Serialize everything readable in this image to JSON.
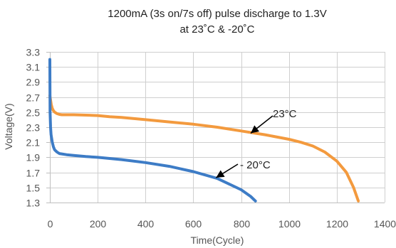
{
  "chart_data": {
    "type": "line",
    "title_lines": [
      "1200mA (3s on/7s off) pulse discharge to 1.3V",
      "at 23˚C & -20˚C"
    ],
    "xlabel": "Time(Cycle)",
    "ylabel": "Voltage(V)",
    "xlim": [
      0,
      1400
    ],
    "ylim": [
      1.3,
      3.3
    ],
    "x_ticks": [
      0,
      200,
      400,
      600,
      800,
      1000,
      1200,
      1400
    ],
    "y_ticks": [
      1.3,
      1.5,
      1.7,
      1.9,
      2.1,
      2.3,
      2.5,
      2.7,
      2.9,
      3.1,
      3.3
    ],
    "x_tick_labels": [
      "0",
      "200",
      "400",
      "600",
      "800",
      "1000",
      "1200",
      "1400"
    ],
    "y_tick_labels": [
      "1.3",
      "1.5",
      "1.7",
      "1.9",
      "2.1",
      "2.3",
      "2.5",
      "2.7",
      "2.9",
      "3.1",
      "3.3"
    ],
    "grid": true,
    "series": [
      {
        "name": "23°C",
        "color": "#F39A3E",
        "x": [
          0,
          3,
          6,
          10,
          15,
          20,
          30,
          40,
          50,
          60,
          80,
          100,
          150,
          200,
          250,
          300,
          400,
          500,
          600,
          700,
          800,
          900,
          1000,
          1050,
          1100,
          1150,
          1200,
          1240,
          1270,
          1290
        ],
        "y": [
          2.72,
          2.66,
          2.6,
          2.55,
          2.52,
          2.5,
          2.48,
          2.47,
          2.465,
          2.465,
          2.465,
          2.465,
          2.46,
          2.455,
          2.44,
          2.43,
          2.4,
          2.37,
          2.34,
          2.3,
          2.25,
          2.2,
          2.14,
          2.1,
          2.05,
          1.97,
          1.85,
          1.7,
          1.5,
          1.32
        ]
      },
      {
        "name": "-20°C",
        "color": "#3D7CC6",
        "x": [
          0,
          1,
          3,
          5,
          10,
          15,
          20,
          30,
          40,
          50,
          70,
          100,
          150,
          200,
          300,
          400,
          500,
          600,
          700,
          800,
          840,
          860
        ],
        "y": [
          3.2,
          2.5,
          2.3,
          2.2,
          2.1,
          2.04,
          2.0,
          1.97,
          1.95,
          1.945,
          1.935,
          1.925,
          1.91,
          1.9,
          1.87,
          1.83,
          1.78,
          1.71,
          1.62,
          1.47,
          1.38,
          1.32
        ]
      }
    ],
    "annotations": [
      {
        "text": "23°C",
        "series": "23°C"
      },
      {
        "text": "- 20°C",
        "series": "-20°C"
      }
    ]
  }
}
